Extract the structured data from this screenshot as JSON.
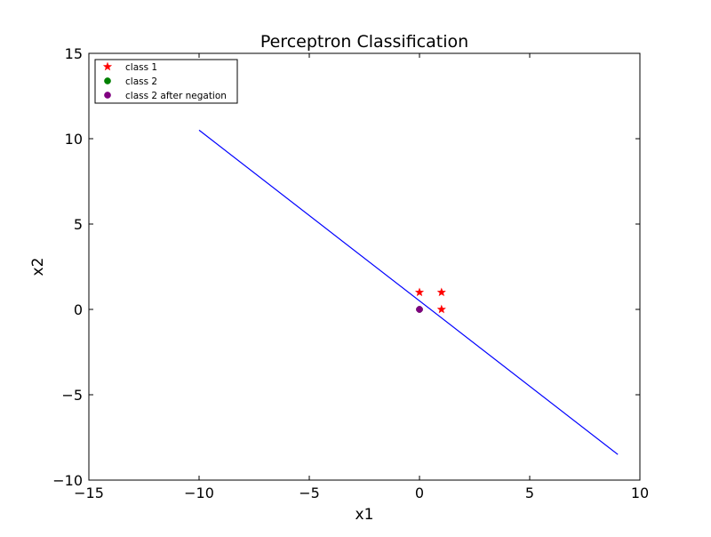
{
  "chart_data": {
    "type": "scatter",
    "title": "Perceptron Classification",
    "xlabel": "x1",
    "ylabel": "x2",
    "xlim": [
      -15,
      10
    ],
    "ylim": [
      -10,
      15
    ],
    "xticks": [
      -15,
      -10,
      -5,
      0,
      5,
      10
    ],
    "yticks": [
      -10,
      -5,
      0,
      5,
      10,
      15
    ],
    "xtick_labels": [
      "−15",
      "−10",
      "−5",
      "0",
      "5",
      "10"
    ],
    "ytick_labels": [
      "−10",
      "−5",
      "0",
      "5",
      "10",
      "15"
    ],
    "grid": false,
    "legend_position": "top-left",
    "series": [
      {
        "name": "class 1",
        "marker": "star",
        "color": "#ff0000",
        "points": [
          [
            0,
            1
          ],
          [
            1,
            1
          ],
          [
            1,
            0
          ]
        ]
      },
      {
        "name": "class 2",
        "marker": "circle",
        "color": "#008000",
        "points": [
          [
            0,
            0
          ]
        ]
      },
      {
        "name": "class 2 after negation",
        "marker": "circle",
        "color": "#800080",
        "points": [
          [
            0,
            0
          ]
        ]
      }
    ],
    "decision_boundary": {
      "color": "#0000ff",
      "points": [
        [
          -10,
          10.5
        ],
        [
          9,
          -8.5
        ]
      ]
    }
  }
}
